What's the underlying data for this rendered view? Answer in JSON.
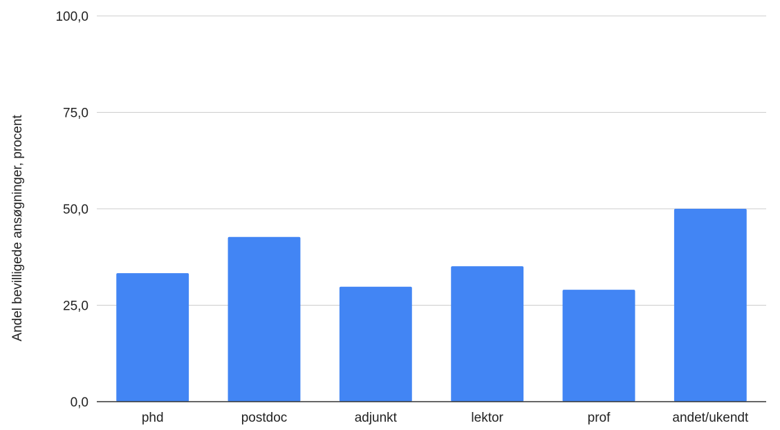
{
  "chart_data": {
    "type": "bar",
    "title": "",
    "xlabel": "",
    "ylabel": "Andel bevilligede ansøgninger, procent",
    "categories": [
      "phd",
      "postdoc",
      "adjunkt",
      "lektor",
      "prof",
      "andet/ukendt"
    ],
    "values": [
      33.3,
      42.7,
      29.8,
      35.1,
      29.0,
      50.0
    ],
    "ylim": [
      0,
      100
    ],
    "yticks": [
      0,
      25,
      50,
      75,
      100
    ],
    "ytick_labels": [
      "0,0",
      "25,0",
      "50,0",
      "75,0",
      "100,0"
    ],
    "grid": true,
    "legend": "none",
    "bar_color": "#4285F4",
    "grid_color": "#CCCCCC",
    "axis_color": "#333333"
  }
}
